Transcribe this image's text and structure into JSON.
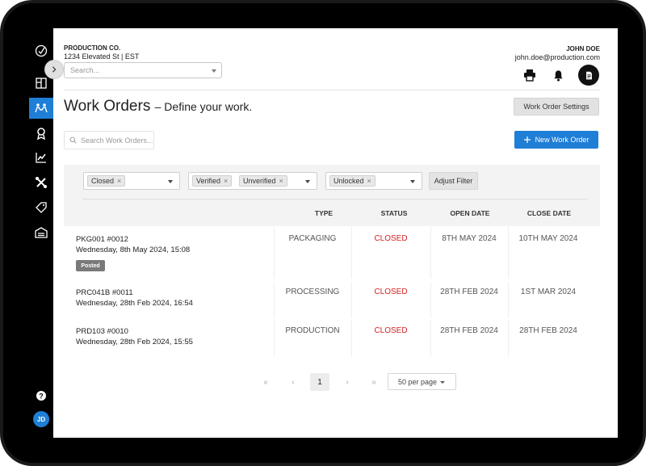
{
  "company": {
    "name": "PRODUCTION CO.",
    "address": "1234 Elevated St | EST"
  },
  "header": {
    "search_placeholder": "Search..."
  },
  "user": {
    "name": "JOHN DOE",
    "email": "john.doe@production.com",
    "initials": "JD"
  },
  "page": {
    "title": "Work Orders",
    "subtitle": "– Define your work."
  },
  "actions": {
    "settings_label": "Work Order Settings",
    "new_label": "New Work Order",
    "search_placeholder": "Search Work Orders..."
  },
  "filters": {
    "groups": [
      {
        "chips": [
          "Closed"
        ]
      },
      {
        "chips": [
          "Verified",
          "Unverified"
        ]
      },
      {
        "chips": [
          "Unlocked"
        ]
      }
    ],
    "adjust_label": "Adjust Filter"
  },
  "table": {
    "columns": [
      "TYPE",
      "STATUS",
      "OPEN DATE",
      "CLOSE DATE"
    ],
    "rows": [
      {
        "id": "PKG001 #0012",
        "date": "Wednesday, 8th May 2024, 15:08",
        "badge": "Posted",
        "type": "PACKAGING",
        "status": "CLOSED",
        "open": "8TH MAY 2024",
        "close": "10TH MAY 2024"
      },
      {
        "id": "PRC041B #0011",
        "date": "Wednesday, 28th Feb 2024, 16:54",
        "badge": "",
        "type": "PROCESSING",
        "status": "CLOSED",
        "open": "28TH FEB 2024",
        "close": "1ST MAR 2024"
      },
      {
        "id": "PRD103 #0010",
        "date": "Wednesday, 28th Feb 2024, 15:55",
        "badge": "",
        "type": "PRODUCTION",
        "status": "CLOSED",
        "open": "28TH FEB 2024",
        "close": "28TH FEB 2024"
      }
    ]
  },
  "pagination": {
    "first": "«",
    "prev": "‹",
    "current": "1",
    "next": "›",
    "last": "»",
    "per_page": "50 per page"
  },
  "colors": {
    "accent": "#1f7ed6",
    "status_closed": "#d42222",
    "sidebar": "#000000"
  },
  "sidebar": {
    "icons": [
      "logo-icon",
      "dashboard-icon",
      "work-orders-icon",
      "award-icon",
      "analytics-icon",
      "tools-icon",
      "tag-icon",
      "warehouse-icon",
      "help-icon"
    ],
    "active": "work-orders-icon"
  }
}
